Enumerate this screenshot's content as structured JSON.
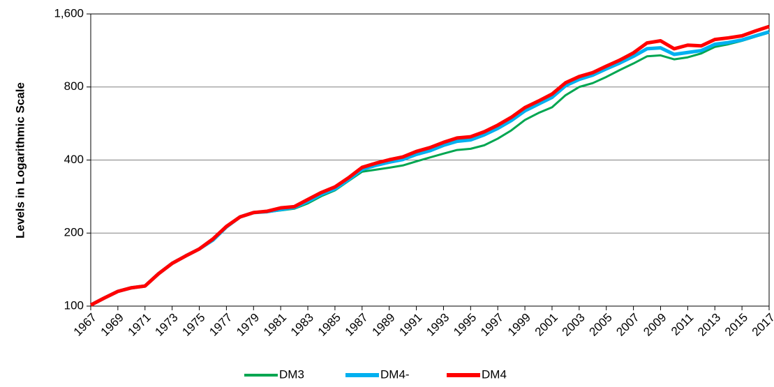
{
  "chart_data": {
    "type": "line",
    "y_label": "Levels in Logarithmic Scale",
    "log_scale": true,
    "grid": true,
    "legend": "bottom",
    "x": [
      1967,
      1968,
      1969,
      1970,
      1971,
      1972,
      1973,
      1974,
      1975,
      1976,
      1977,
      1978,
      1979,
      1980,
      1981,
      1982,
      1983,
      1984,
      1985,
      1986,
      1987,
      1988,
      1989,
      1990,
      1991,
      1992,
      1993,
      1994,
      1995,
      1996,
      1997,
      1998,
      1999,
      2000,
      2001,
      2002,
      2003,
      2004,
      2005,
      2006,
      2007,
      2008,
      2009,
      2010,
      2011,
      2012,
      2013,
      2014,
      2015,
      2016,
      2017
    ],
    "xlim": [
      1967,
      2017
    ],
    "xticks": [
      1967,
      1969,
      1971,
      1973,
      1975,
      1977,
      1979,
      1981,
      1983,
      1985,
      1987,
      1989,
      1991,
      1993,
      1995,
      1997,
      1999,
      2001,
      2003,
      2005,
      2007,
      2009,
      2011,
      2013,
      2015,
      2017
    ],
    "ylim": [
      100,
      1600
    ],
    "yticks": [
      100,
      200,
      400,
      800,
      {
        "value": 1600,
        "label": "1,600"
      }
    ],
    "series": [
      {
        "name": "DM3",
        "color": "#00a651",
        "width": 3,
        "values": [
          101,
          108,
          115,
          119,
          121,
          136,
          150,
          161,
          172,
          186,
          211,
          232,
          242,
          244,
          248,
          252,
          265,
          284,
          300,
          328,
          358,
          365,
          372,
          380,
          395,
          410,
          425,
          440,
          445,
          460,
          490,
          530,
          585,
          625,
          660,
          740,
          800,
          830,
          880,
          940,
          1000,
          1070,
          1080,
          1040,
          1060,
          1100,
          1170,
          1200,
          1240,
          1290,
          1340
        ]
      },
      {
        "name": "DM4-",
        "color": "#00b0f0",
        "width": 5,
        "values": [
          101,
          108,
          115,
          119,
          121,
          136,
          150,
          161,
          172,
          187,
          212,
          233,
          243,
          245,
          250,
          255,
          270,
          289,
          304,
          332,
          366,
          380,
          392,
          402,
          422,
          437,
          460,
          478,
          484,
          508,
          540,
          582,
          638,
          680,
          725,
          810,
          860,
          895,
          950,
          1005,
          1070,
          1150,
          1160,
          1090,
          1110,
          1130,
          1200,
          1220,
          1250,
          1300,
          1350
        ]
      },
      {
        "name": "DM4",
        "color": "#ff0000",
        "width": 5,
        "values": [
          101,
          108,
          115,
          119,
          121,
          136,
          150,
          161,
          172,
          189,
          213,
          233,
          243,
          246,
          254,
          257,
          275,
          294,
          310,
          338,
          373,
          388,
          401,
          412,
          434,
          450,
          473,
          493,
          499,
          523,
          557,
          600,
          658,
          700,
          748,
          833,
          883,
          917,
          975,
          1033,
          1106,
          1215,
          1240,
          1150,
          1190,
          1182,
          1256,
          1275,
          1300,
          1362,
          1420
        ]
      }
    ]
  }
}
